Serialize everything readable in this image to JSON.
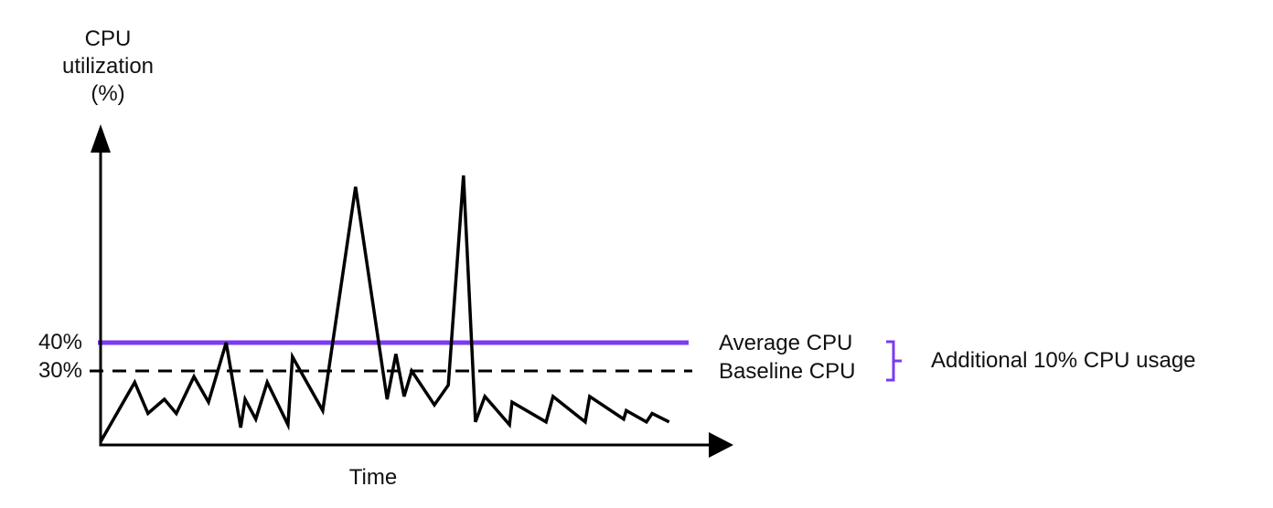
{
  "colors": {
    "accent_purple": "#7B3BF0",
    "series_black": "#000000",
    "text": "#111111"
  },
  "chart_data": {
    "type": "line",
    "title": "",
    "ylabel": "CPU\nutilization\n(%)",
    "xlabel": "Time",
    "ylim": [
      0,
      110
    ],
    "grid": false,
    "legend_position": "right-of-lines",
    "y_ticks": [
      {
        "value": 40,
        "label": "40%"
      },
      {
        "value": 30,
        "label": "30%"
      }
    ],
    "reference_lines": [
      {
        "id": "average",
        "label": "Average CPU",
        "value": 40,
        "style": "solid",
        "color": "#7B3BF0"
      },
      {
        "id": "baseline",
        "label": "Baseline CPU",
        "value": 30,
        "style": "dashed",
        "color": "#000000"
      }
    ],
    "annotation": {
      "label": "Additional 10% CPU usage",
      "refers_to_gap": [
        30,
        40
      ]
    },
    "series": [
      {
        "name": "CPU utilization",
        "color": "#000000",
        "points": [
          [
            0,
            5
          ],
          [
            5.4,
            26
          ],
          [
            7.5,
            15
          ],
          [
            10.1,
            20
          ],
          [
            12.0,
            15
          ],
          [
            14.8,
            28
          ],
          [
            17.1,
            19
          ],
          [
            19.9,
            40
          ],
          [
            22.2,
            10
          ],
          [
            22.9,
            20
          ],
          [
            24.6,
            13
          ],
          [
            26.4,
            26
          ],
          [
            29.7,
            11
          ],
          [
            30.4,
            35
          ],
          [
            35.2,
            16
          ],
          [
            40.4,
            95
          ],
          [
            45.4,
            20
          ],
          [
            46.8,
            36
          ],
          [
            48.1,
            21
          ],
          [
            49.3,
            30
          ],
          [
            52.9,
            18
          ],
          [
            55.1,
            25
          ],
          [
            57.5,
            99
          ],
          [
            59.4,
            12
          ],
          [
            60.9,
            21
          ],
          [
            64.8,
            11
          ],
          [
            65.2,
            19
          ],
          [
            70.6,
            12
          ],
          [
            71.7,
            21
          ],
          [
            76.8,
            12
          ],
          [
            77.5,
            21
          ],
          [
            82.9,
            13
          ],
          [
            83.3,
            16
          ],
          [
            86.5,
            12
          ],
          [
            87.4,
            15
          ],
          [
            90.1,
            12
          ]
        ]
      }
    ]
  }
}
